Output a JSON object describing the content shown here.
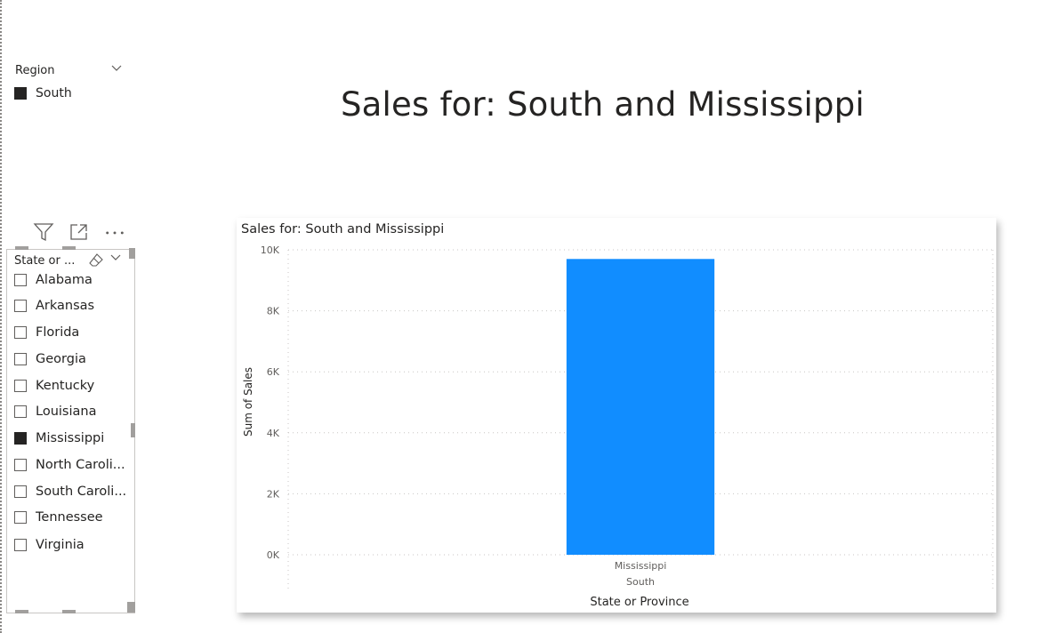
{
  "region_slicer": {
    "title": "Region",
    "items": [
      {
        "label": "South",
        "checked": true
      }
    ]
  },
  "toolbar": {
    "icons": [
      "filter-icon",
      "focus-mode-icon",
      "more-options-icon"
    ]
  },
  "state_slicer": {
    "title": "State or ...",
    "items": [
      {
        "label": "Alabama",
        "checked": false
      },
      {
        "label": "Arkansas",
        "checked": false
      },
      {
        "label": "Florida",
        "checked": false
      },
      {
        "label": "Georgia",
        "checked": false
      },
      {
        "label": "Kentucky",
        "checked": false
      },
      {
        "label": "Louisiana",
        "checked": false
      },
      {
        "label": "Mississippi",
        "checked": true
      },
      {
        "label": "North Caroli...",
        "checked": false
      },
      {
        "label": "South Caroli...",
        "checked": false
      },
      {
        "label": "Tennessee",
        "checked": false
      },
      {
        "label": "Virginia",
        "checked": false
      }
    ]
  },
  "page_title": "Sales for: South and Mississippi",
  "colors": {
    "highlight": "#e3202a",
    "bar": "#118dff"
  },
  "chart_data": {
    "type": "bar",
    "title": "Sales for: South and Mississippi",
    "categories": [
      "Mississippi"
    ],
    "category_groups": [
      "South"
    ],
    "values": [
      9700
    ],
    "xlabel": "State or Province",
    "ylabel": "Sum of Sales",
    "ylim": [
      0,
      10000
    ],
    "yticks": [
      0,
      2000,
      4000,
      6000,
      8000,
      10000
    ],
    "ytick_labels": [
      "0K",
      "2K",
      "4K",
      "6K",
      "8K",
      "10K"
    ],
    "grid": true
  }
}
